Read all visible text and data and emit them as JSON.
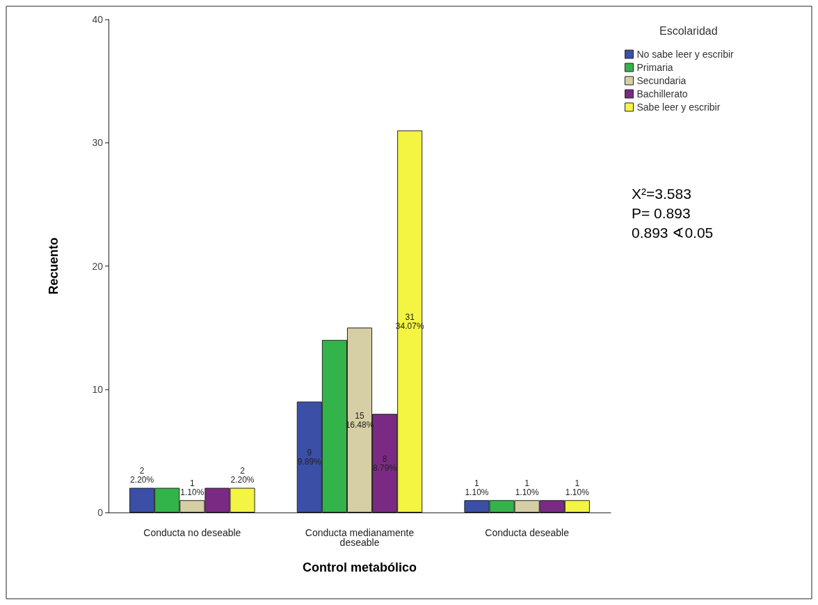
{
  "chart_data": {
    "type": "bar",
    "xlabel": "Control metabólico",
    "ylabel": "Recuento",
    "legend_title": "Escolaridad",
    "legend": "top right",
    "grid": false,
    "categories": [
      "Conducta no deseable",
      "Conducta medianamente\ndeseable",
      "Conducta deseable"
    ],
    "ylim": [
      0,
      40
    ],
    "yticks": [
      0,
      10,
      20,
      30,
      40
    ],
    "series": [
      {
        "name": "No sabe leer y escribir",
        "color": "#3b4fa6",
        "values": [
          2,
          9,
          1
        ],
        "value_labels": [
          "2\n2.20%",
          "9\n9.89%",
          "1\n1.10%"
        ]
      },
      {
        "name": "Primaria",
        "color": "#33b44a",
        "values": [
          2,
          14,
          1
        ],
        "value_labels": [
          null,
          null,
          null
        ]
      },
      {
        "name": "Secundaria",
        "color": "#d6cfa6",
        "values": [
          1,
          15,
          1
        ],
        "value_labels": [
          "1\n1.10%",
          "15\n16.48%",
          "1\n1.10%"
        ]
      },
      {
        "name": "Bachillerato",
        "color": "#7b2a83",
        "values": [
          2,
          8,
          1
        ],
        "value_labels": [
          null,
          "8\n8.79%",
          null
        ]
      },
      {
        "name": "Sabe leer y escribir",
        "color": "#f4f442",
        "values": [
          2,
          31,
          1
        ],
        "value_labels": [
          "2\n2.20%",
          "31\n34.07%",
          "1\n1.10%"
        ]
      }
    ],
    "annotations": [
      "X²=3.583",
      "P= 0.893",
      "0.893 ∢0.05"
    ]
  }
}
